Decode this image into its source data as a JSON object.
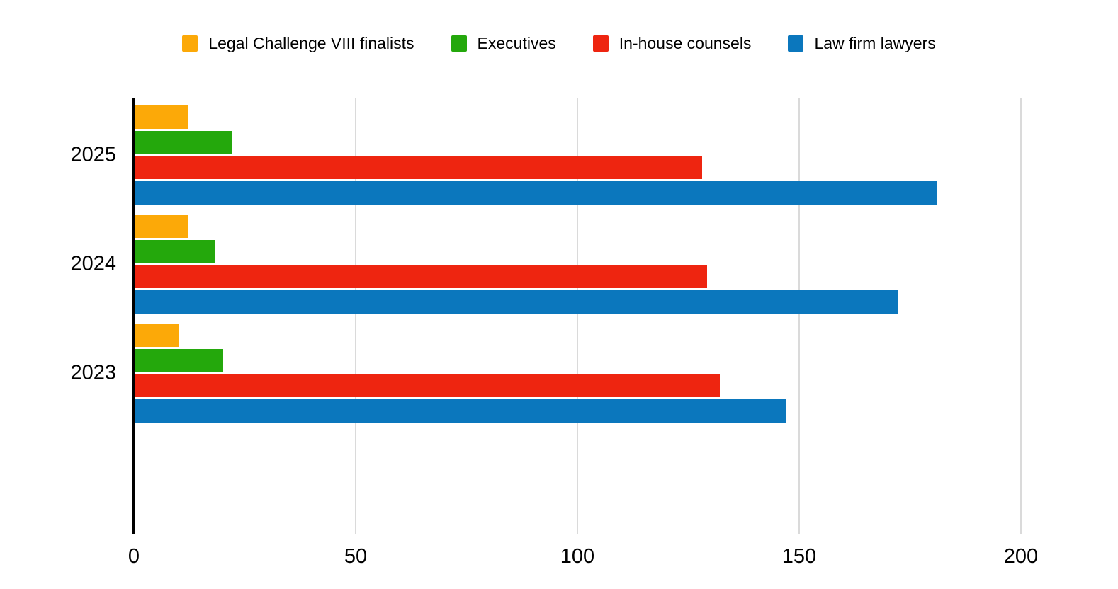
{
  "chart_data": {
    "type": "bar",
    "orientation": "horizontal",
    "title": "",
    "xlabel": "",
    "ylabel": "",
    "categories": [
      "2025",
      "2024",
      "2023"
    ],
    "series": [
      {
        "name": "Legal Challenge VIII finalists",
        "color": "#FCA908",
        "values": [
          12,
          12,
          10
        ]
      },
      {
        "name": "Executives",
        "color": "#24A80C",
        "values": [
          22,
          18,
          20
        ]
      },
      {
        "name": "In-house counsels",
        "color": "#EE2510",
        "values": [
          128,
          129,
          132
        ]
      },
      {
        "name": "Law firm lawyers",
        "color": "#0B77BD",
        "values": [
          181,
          172,
          147
        ]
      }
    ],
    "xlim": [
      0,
      200
    ],
    "x_ticks": [
      0,
      50,
      100,
      150,
      200
    ],
    "grid": "vertical-gridlines-on",
    "legend_position": "top-center",
    "colors": {
      "background": "#FFFFFF",
      "gridline": "#DADADA",
      "axis": "#000000",
      "text": "#000000"
    }
  }
}
